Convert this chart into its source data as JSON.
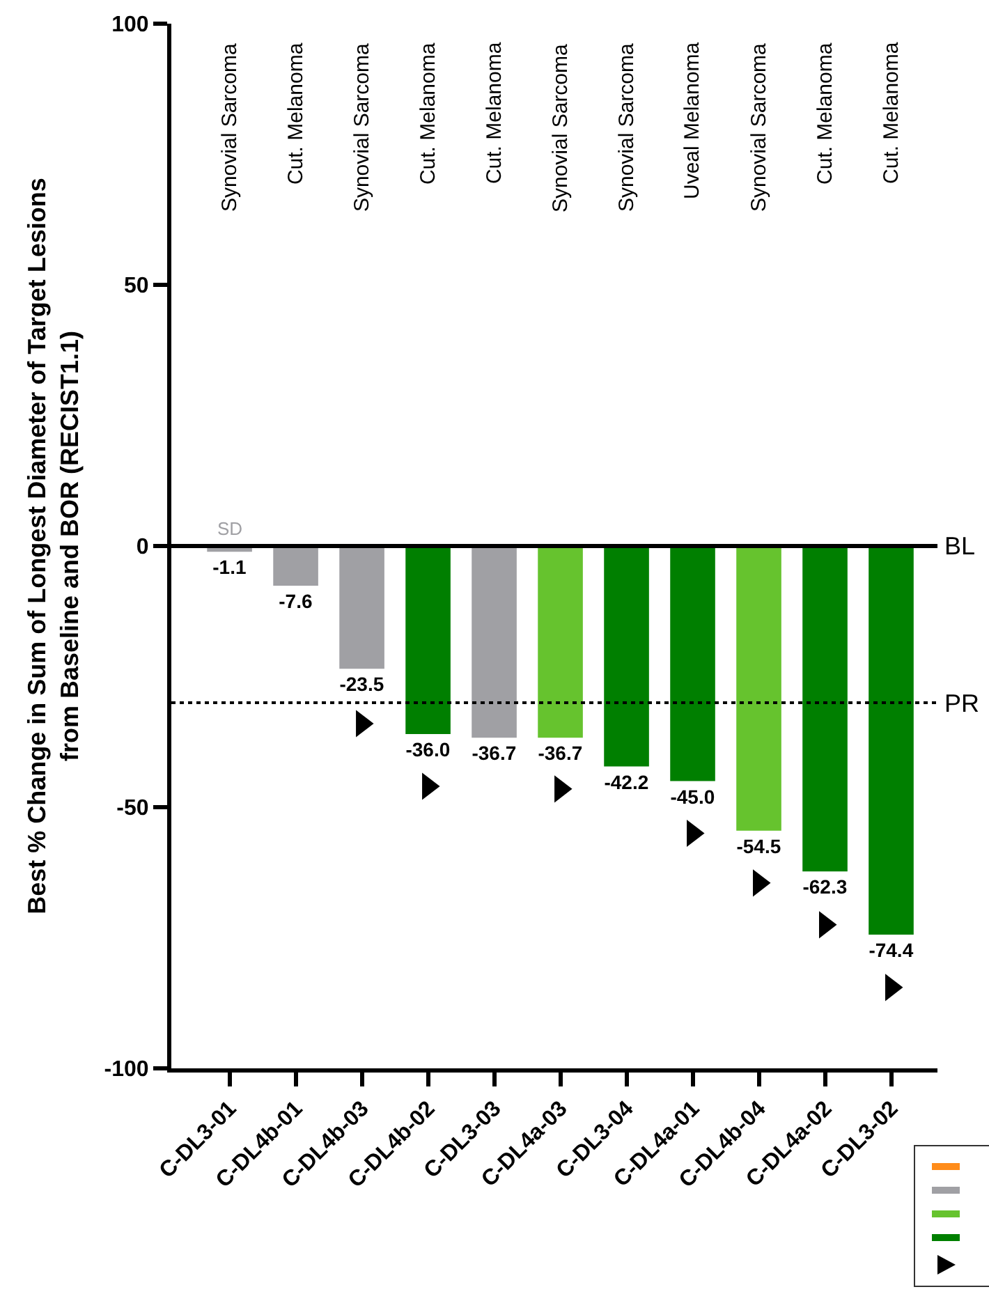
{
  "chart_data": {
    "type": "bar",
    "ylabel": "Best % Change in Sum of Longest Diameter of Target Lesions\nfrom Baseline and BOR (RECIST1.1)",
    "categories": [
      "C-DL3-01",
      "C-DL4b-01",
      "C-DL4b-03",
      "C-DL4b-02",
      "C-DL3-03",
      "C-DL4a-03",
      "C-DL3-04",
      "C-DL4a-01",
      "C-DL4b-04",
      "C-DL4a-02",
      "C-DL3-02"
    ],
    "series": [
      {
        "values": [
          -1.1,
          -7.6,
          -23.5,
          -36.0,
          -36.7,
          -36.7,
          -42.2,
          -45.0,
          -54.5,
          -62.3,
          -74.4
        ],
        "colors": [
          "#a0a0a4",
          "#a0a0a4",
          "#a0a0a4",
          "#007f00",
          "#a0a0a4",
          "#66c32e",
          "#007f00",
          "#007f00",
          "#66c32e",
          "#007f00",
          "#007f00"
        ],
        "value_labels": [
          "-1.1",
          "-7.6",
          "-23.5",
          "-36.0",
          "-36.7",
          "-36.7",
          "-42.2",
          "-45.0",
          "-54.5",
          "-62.3",
          "-74.4"
        ]
      },
      {
        "type": "scatter",
        "marker": "triangle",
        "color": "#000000",
        "values": [
          null,
          null,
          -34,
          -46,
          null,
          -46.5,
          null,
          -55,
          -64.5,
          -72.5,
          -84.5
        ]
      }
    ],
    "ylim": [
      -100,
      100
    ],
    "yticks": [
      -100,
      -50,
      0,
      50,
      100
    ],
    "grid": false,
    "ref_lines": [
      {
        "axis": "y",
        "value": 0,
        "label": "BL",
        "line_style": "solid",
        "color": "#000000"
      },
      {
        "axis": "y",
        "value": -30,
        "label": "PR",
        "line_style": "dotted",
        "color": "#000000"
      }
    ],
    "annotations": [
      {
        "text": "SD",
        "x": "C-DL3-01",
        "y": 0
      },
      "Synovial Sarcoma",
      "Cut. Melanoma",
      "Synovial Sarcoma",
      "Cut. Melanoma",
      "Cut. Melanoma",
      "Synovial Sarcoma",
      "Synovial Sarcoma",
      "Uveal Melanoma",
      "Synovial Sarcoma",
      "Cut. Melanoma",
      "Cut. Melanoma"
    ]
  }
}
